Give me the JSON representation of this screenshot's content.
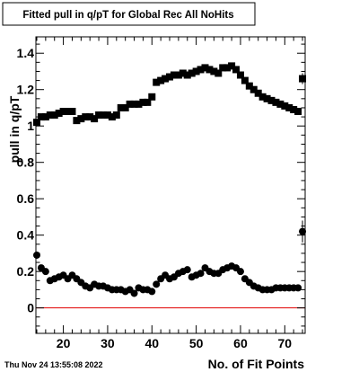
{
  "chart_data": {
    "type": "scatter",
    "title": "Fitted pull in q/pT for Global Rec All NoHits",
    "xlabel": "No. of Fit Points",
    "ylabel": "pull in q/pT",
    "footer_text": "Thu Nov 24 13:55:08 2022",
    "xlim": [
      13.8,
      74.6
    ],
    "ylim": [
      -0.14,
      1.49
    ],
    "x_ticks": [
      20,
      30,
      40,
      50,
      60,
      70
    ],
    "y_ticks": [
      0,
      0.2,
      0.4,
      0.6,
      0.8,
      1.0,
      1.2,
      1.4
    ],
    "y_tick_labels": [
      "0",
      "0.2",
      "0.4",
      "0.6",
      "0.8",
      "1",
      "1.2",
      "1.4"
    ],
    "grid": false,
    "reference_line": {
      "y": 0,
      "color": "#e00000"
    },
    "series": [
      {
        "marker": "square",
        "x": [
          14,
          15,
          16,
          17,
          18,
          19,
          20,
          21,
          22,
          23,
          24,
          25,
          26,
          27,
          28,
          29,
          30,
          31,
          32,
          33,
          34,
          35,
          36,
          37,
          38,
          39,
          40,
          41,
          42,
          43,
          44,
          45,
          46,
          47,
          48,
          49,
          50,
          51,
          52,
          53,
          54,
          55,
          56,
          57,
          58,
          59,
          60,
          61,
          62,
          63,
          64,
          65,
          66,
          67,
          68,
          69,
          70,
          71,
          72,
          73,
          74
        ],
        "y": [
          1.02,
          1.05,
          1.05,
          1.06,
          1.06,
          1.07,
          1.08,
          1.08,
          1.08,
          1.03,
          1.04,
          1.05,
          1.05,
          1.04,
          1.06,
          1.06,
          1.06,
          1.05,
          1.06,
          1.1,
          1.1,
          1.12,
          1.12,
          1.12,
          1.13,
          1.13,
          1.16,
          1.24,
          1.25,
          1.26,
          1.27,
          1.28,
          1.28,
          1.29,
          1.28,
          1.29,
          1.3,
          1.31,
          1.32,
          1.31,
          1.3,
          1.29,
          1.32,
          1.32,
          1.33,
          1.31,
          1.28,
          1.25,
          1.22,
          1.2,
          1.18,
          1.16,
          1.15,
          1.14,
          1.13,
          1.12,
          1.11,
          1.1,
          1.09,
          1.08,
          1.26
        ],
        "y_err": [
          0,
          0,
          0,
          0,
          0,
          0,
          0,
          0,
          0,
          0,
          0,
          0,
          0,
          0,
          0,
          0,
          0,
          0,
          0,
          0,
          0,
          0,
          0,
          0,
          0,
          0,
          0,
          0,
          0,
          0,
          0,
          0,
          0,
          0,
          0,
          0,
          0,
          0,
          0,
          0,
          0,
          0,
          0,
          0,
          0,
          0,
          0,
          0,
          0,
          0,
          0,
          0,
          0,
          0,
          0,
          0,
          0,
          0,
          0,
          0,
          0.03
        ]
      },
      {
        "marker": "circle",
        "x": [
          14,
          15,
          16,
          17,
          18,
          19,
          20,
          21,
          22,
          23,
          24,
          25,
          26,
          27,
          28,
          29,
          30,
          31,
          32,
          33,
          34,
          35,
          36,
          37,
          38,
          39,
          40,
          41,
          42,
          43,
          44,
          45,
          46,
          47,
          48,
          49,
          50,
          51,
          52,
          53,
          54,
          55,
          56,
          57,
          58,
          59,
          60,
          61,
          62,
          63,
          64,
          65,
          66,
          67,
          68,
          69,
          70,
          71,
          72,
          73,
          74
        ],
        "y": [
          0.29,
          0.22,
          0.2,
          0.15,
          0.16,
          0.17,
          0.18,
          0.16,
          0.18,
          0.16,
          0.14,
          0.12,
          0.11,
          0.13,
          0.12,
          0.12,
          0.11,
          0.1,
          0.1,
          0.1,
          0.09,
          0.1,
          0.08,
          0.11,
          0.1,
          0.1,
          0.09,
          0.13,
          0.16,
          0.18,
          0.16,
          0.17,
          0.19,
          0.2,
          0.21,
          0.17,
          0.18,
          0.19,
          0.22,
          0.2,
          0.19,
          0.19,
          0.21,
          0.22,
          0.23,
          0.22,
          0.2,
          0.16,
          0.14,
          0.12,
          0.11,
          0.1,
          0.1,
          0.1,
          0.11,
          0.11,
          0.11,
          0.11,
          0.11,
          0.11,
          0.42
        ],
        "y_err": [
          0.02,
          0,
          0,
          0,
          0,
          0,
          0,
          0,
          0,
          0,
          0,
          0,
          0,
          0,
          0,
          0,
          0,
          0,
          0,
          0,
          0,
          0,
          0,
          0,
          0,
          0,
          0,
          0,
          0,
          0,
          0,
          0,
          0,
          0,
          0,
          0,
          0,
          0,
          0,
          0,
          0,
          0,
          0,
          0,
          0,
          0,
          0,
          0,
          0,
          0,
          0,
          0,
          0,
          0,
          0,
          0,
          0,
          0,
          0,
          0,
          0.06
        ]
      }
    ]
  }
}
